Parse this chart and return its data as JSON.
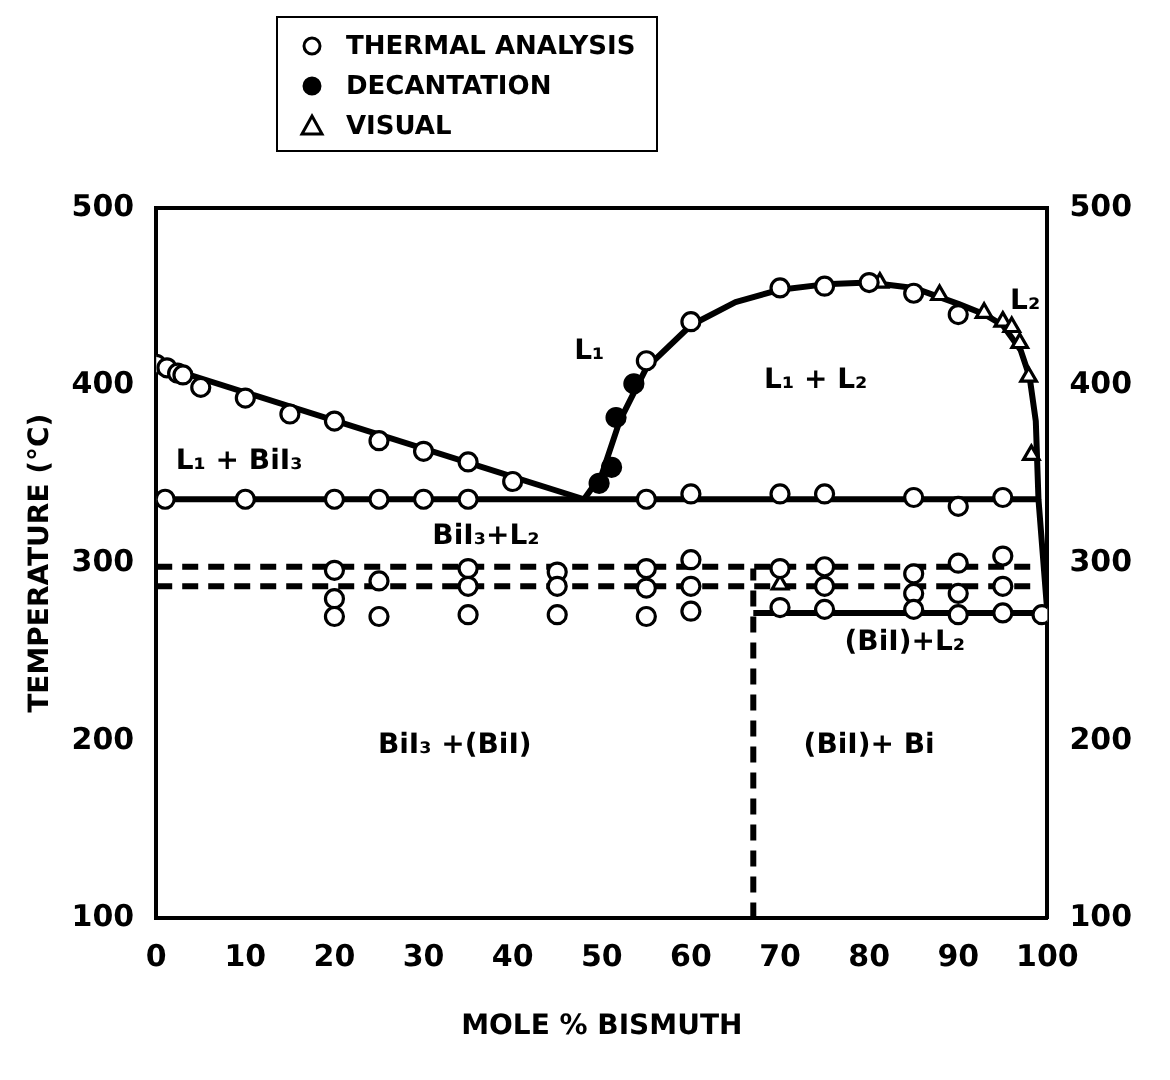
{
  "chart_data": {
    "type": "scatter",
    "xlabel": "MOLE % BISMUTH",
    "ylabel": "TEMPERATURE (°C)",
    "xlim": [
      0,
      100
    ],
    "xticks": [
      0,
      10,
      20,
      30,
      40,
      50,
      60,
      70,
      80,
      90,
      100
    ],
    "ylim": [
      100,
      500
    ],
    "yticks": [
      100,
      200,
      300,
      400,
      500
    ],
    "y2lim": [
      100,
      500
    ],
    "y2ticks": [
      100,
      200,
      300,
      400,
      500
    ],
    "grid": false,
    "legend": "top",
    "series": [
      {
        "name": "THERMAL ANALYSIS",
        "marker": "circle",
        "color": "#ffffff",
        "x": [
          0,
          1.2,
          2.4,
          3,
          5,
          10,
          15,
          20,
          25,
          30,
          35,
          40,
          1,
          10,
          20,
          25,
          30,
          35,
          55,
          60,
          70,
          75,
          85,
          90,
          95,
          20,
          20,
          20,
          25,
          25,
          35,
          35,
          35,
          45,
          45,
          45,
          55,
          55,
          55,
          60,
          60,
          60,
          70,
          70,
          75,
          75,
          75,
          85,
          85,
          85,
          90,
          90,
          90,
          95,
          95,
          95,
          99.4,
          55,
          60,
          70,
          75,
          80,
          85,
          90
        ],
        "values": [
          412,
          410,
          407,
          406,
          399,
          393,
          384,
          380,
          369,
          363,
          357,
          346,
          336,
          336,
          336,
          336,
          336,
          336,
          336,
          339,
          339,
          339,
          337,
          332,
          337,
          296,
          280,
          270,
          290,
          270,
          297,
          287,
          271,
          295,
          287,
          271,
          297,
          286,
          270,
          302,
          287,
          273,
          297,
          275,
          298,
          287,
          274,
          294,
          283,
          274,
          300,
          283,
          271,
          304,
          287,
          272,
          271,
          414,
          436,
          455,
          456,
          458,
          452,
          440
        ]
      },
      {
        "name": "DECANTATION",
        "marker": "circle",
        "color": "#000000",
        "x": [
          49.7,
          51.1,
          51.6,
          53.6
        ],
        "values": [
          345,
          354,
          382,
          401
        ]
      },
      {
        "name": "VISUAL",
        "marker": "triangle",
        "color": "#ffffff",
        "x": [
          70,
          81.2,
          87.9,
          92.9,
          95,
          96,
          96.9,
          97.9,
          98.2
        ],
        "values": [
          288,
          458,
          451,
          441,
          436,
          433,
          424,
          405,
          361
        ]
      },
      {
        "type": "line",
        "line_style": "solid",
        "color": "#000000",
        "x": [
          0,
          48
        ],
        "values": [
          412,
          336
        ]
      },
      {
        "type": "line",
        "line_style": "solid",
        "color": "#000000",
        "x": [
          0,
          99
        ],
        "values": [
          336,
          336
        ]
      },
      {
        "type": "line",
        "line_style": "solid",
        "color": "#000000",
        "x": [
          48,
          50,
          52,
          55,
          60,
          65,
          70,
          75,
          80,
          85,
          90,
          93,
          95,
          97,
          98,
          98.7,
          99,
          100
        ],
        "values": [
          336,
          350,
          380,
          410,
          434,
          447,
          454,
          457,
          458,
          455,
          446,
          440,
          434,
          420,
          405,
          380,
          336,
          272
        ]
      },
      {
        "type": "line",
        "line_style": "solid",
        "color": "#000000",
        "x": [
          67,
          100
        ],
        "values": [
          272,
          272
        ]
      },
      {
        "type": "line",
        "line_style": "dashed",
        "color": "#000000",
        "x": [
          0,
          99
        ],
        "values": [
          298,
          298
        ]
      },
      {
        "type": "line",
        "line_style": "dashed",
        "color": "#000000",
        "x": [
          0,
          99
        ],
        "values": [
          287,
          287
        ]
      },
      {
        "type": "line",
        "line_style": "dashed",
        "color": "#000000",
        "x": [
          67,
          67
        ],
        "values": [
          100,
          297
        ]
      }
    ],
    "annotations": [
      "L₁",
      "L₁ + L₂",
      "L₂",
      "L₁ + BiI₃",
      "BiI₃+L₂",
      "BiI₃ +(BiI)",
      "(BiI)+ Bi",
      "(BiI)+L₂"
    ]
  }
}
